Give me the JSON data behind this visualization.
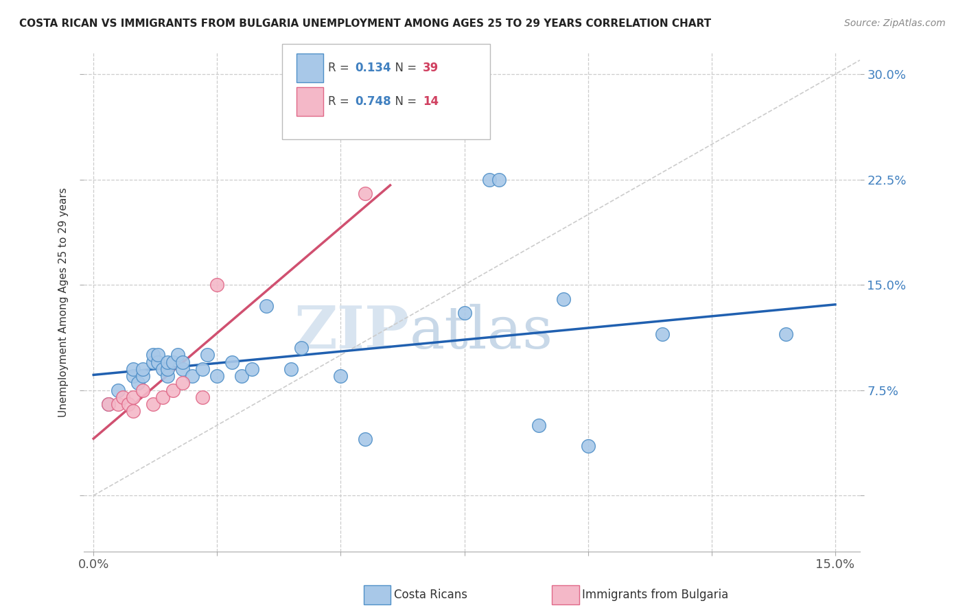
{
  "title": "COSTA RICAN VS IMMIGRANTS FROM BULGARIA UNEMPLOYMENT AMONG AGES 25 TO 29 YEARS CORRELATION CHART",
  "source": "Source: ZipAtlas.com",
  "ylabel": "Unemployment Among Ages 25 to 29 years",
  "xlim": [
    -0.002,
    0.155
  ],
  "ylim": [
    -0.04,
    0.315
  ],
  "xticks": [
    0.0,
    0.025,
    0.05,
    0.075,
    0.1,
    0.125,
    0.15
  ],
  "yticks": [
    0.0,
    0.075,
    0.15,
    0.225,
    0.3
  ],
  "blue_R": "0.134",
  "blue_N": "39",
  "pink_R": "0.748",
  "pink_N": "14",
  "blue_color": "#A8C8E8",
  "pink_color": "#F4B8C8",
  "blue_edge_color": "#5090C8",
  "pink_edge_color": "#E06888",
  "blue_line_color": "#2060B0",
  "pink_line_color": "#D05070",
  "diagonal_color": "#CCCCCC",
  "r_text_color": "#4080C0",
  "n_text_color": "#D04060",
  "background_color": "#FFFFFF",
  "grid_color": "#CCCCCC",
  "blue_x": [
    0.003,
    0.005,
    0.008,
    0.008,
    0.009,
    0.01,
    0.01,
    0.012,
    0.012,
    0.013,
    0.013,
    0.014,
    0.015,
    0.015,
    0.015,
    0.016,
    0.017,
    0.018,
    0.018,
    0.02,
    0.022,
    0.023,
    0.025,
    0.028,
    0.03,
    0.032,
    0.035,
    0.04,
    0.042,
    0.05,
    0.055,
    0.075,
    0.08,
    0.082,
    0.09,
    0.095,
    0.1,
    0.115,
    0.14
  ],
  "blue_y": [
    0.065,
    0.075,
    0.085,
    0.09,
    0.08,
    0.085,
    0.09,
    0.095,
    0.1,
    0.095,
    0.1,
    0.09,
    0.085,
    0.09,
    0.095,
    0.095,
    0.1,
    0.09,
    0.095,
    0.085,
    0.09,
    0.1,
    0.085,
    0.095,
    0.085,
    0.09,
    0.135,
    0.09,
    0.105,
    0.085,
    0.04,
    0.13,
    0.225,
    0.225,
    0.05,
    0.14,
    0.035,
    0.115,
    0.115
  ],
  "pink_x": [
    0.003,
    0.005,
    0.006,
    0.007,
    0.008,
    0.008,
    0.01,
    0.012,
    0.014,
    0.016,
    0.018,
    0.022,
    0.025,
    0.055
  ],
  "pink_y": [
    0.065,
    0.065,
    0.07,
    0.065,
    0.06,
    0.07,
    0.075,
    0.065,
    0.07,
    0.075,
    0.08,
    0.07,
    0.15,
    0.215
  ],
  "watermark": "ZIPatlas"
}
